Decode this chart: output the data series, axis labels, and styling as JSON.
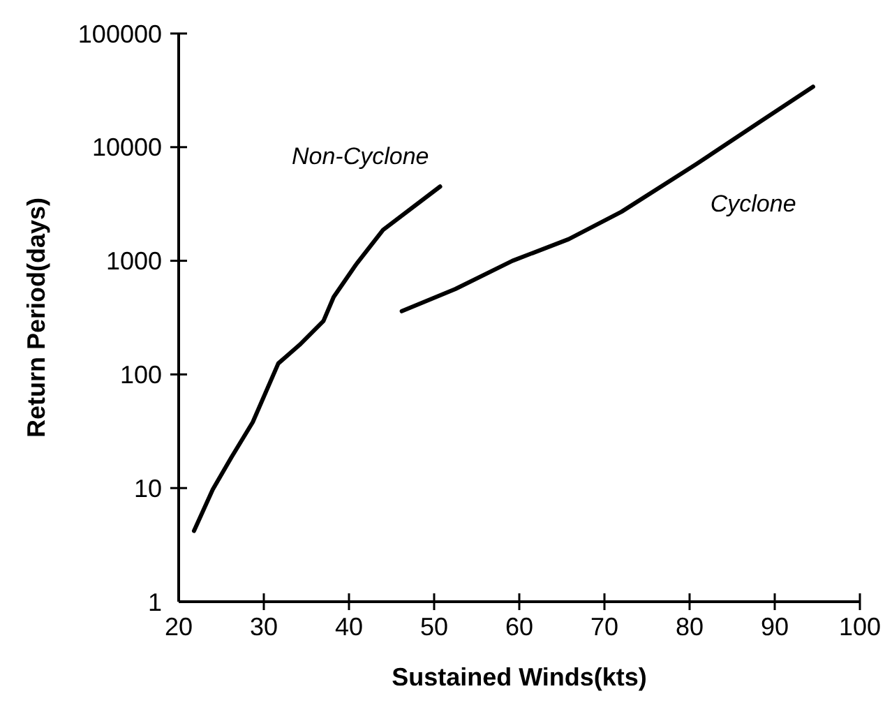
{
  "chart_data": {
    "type": "line",
    "xlabel": "Sustained Winds(kts)",
    "ylabel": "Return Period(days)",
    "log": "y",
    "xlim": [
      20,
      100
    ],
    "xticks": [
      20,
      30,
      40,
      50,
      60,
      70,
      80,
      90,
      100
    ],
    "ylim": [
      1,
      100000
    ],
    "yticks": [
      1,
      10,
      100,
      1000,
      10000,
      100000
    ],
    "grid": false,
    "marker": "none",
    "line_style": "solid",
    "series": [
      {
        "name": "Non-Cyclone",
        "color": "#000000",
        "x": [
          21.8,
          24,
          26.2,
          28.7,
          31.7,
          34.2,
          37,
          38.2,
          40.8,
          44,
          50.7
        ],
        "values": [
          4.2,
          9.7,
          18.7,
          38,
          125,
          182,
          295,
          480,
          920,
          1870,
          4500
        ]
      },
      {
        "name": "Cyclone",
        "color": "#000000",
        "x": [
          46.2,
          52.5,
          59.2,
          65.8,
          72,
          80.8,
          88.2,
          94.5
        ],
        "values": [
          360,
          565,
          1000,
          1550,
          2700,
          7100,
          16600,
          34000
        ]
      }
    ]
  }
}
